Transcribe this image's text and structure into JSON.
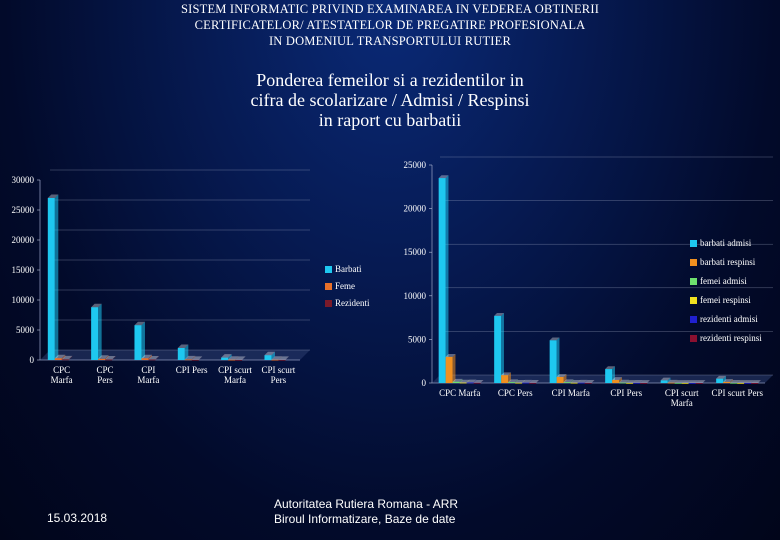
{
  "header": {
    "title_lines": [
      "SISTEM INFORMATIC PRIVIND EXAMINAREA IN VEDEREA OBTINERII",
      "CERTIFICATELOR/ ATESTATELOR DE PREGATIRE PROFESIONALA",
      "IN DOMENIUL TRANSPORTULUI RUTIER"
    ],
    "subtitle_lines": [
      "Ponderea femeilor si a rezidentilor in",
      "cifra de scolarizare / Admisi / Respinsi",
      "in raport cu barbatii"
    ]
  },
  "footer": {
    "date": "15.03.2018",
    "org_lines": [
      "Autoritatea Rutiera Romana - ARR",
      "Biroul  Informatizare, Baze de date"
    ]
  },
  "chart_data": [
    {
      "type": "bar",
      "categories": [
        [
          "CPC",
          "Marfa"
        ],
        [
          "CPC",
          "Pers"
        ],
        [
          "CPI",
          "Marfa"
        ],
        [
          "CPI Pers"
        ],
        [
          "CPI scurt",
          "Marfa"
        ],
        [
          "CPI scurt",
          "Pers"
        ]
      ],
      "series": [
        {
          "name": "Barbati",
          "values": [
            27000,
            8800,
            5800,
            2000,
            400,
            800
          ],
          "color": "#1ec8f0"
        },
        {
          "name": "Feme",
          "values": [
            300,
            200,
            300,
            100,
            50,
            50
          ],
          "color": "#e8702a"
        },
        {
          "name": "Rezidenti",
          "values": [
            100,
            80,
            80,
            30,
            20,
            20
          ],
          "color": "#7a1a2a"
        }
      ],
      "yticks": [
        0,
        5000,
        10000,
        15000,
        20000,
        25000,
        30000
      ],
      "ylim": [
        0,
        30000
      ],
      "legend": "right"
    },
    {
      "type": "bar",
      "categories": [
        [
          "CPC Marfa"
        ],
        [
          "CPC Pers"
        ],
        [
          "CPI Marfa"
        ],
        [
          "CPI Pers"
        ],
        [
          "CPI scurt",
          "Marfa"
        ],
        [
          "CPI scurt Pers"
        ]
      ],
      "series": [
        {
          "name": "barbati admisi",
          "values": [
            23500,
            7700,
            4900,
            1600,
            300,
            500
          ],
          "color": "#1ec8f0"
        },
        {
          "name": "barbati respinsi",
          "values": [
            3000,
            900,
            700,
            350,
            40,
            120
          ],
          "color": "#f09020"
        },
        {
          "name": "femei admisi",
          "values": [
            150,
            100,
            100,
            50,
            10,
            20
          ],
          "color": "#6ee06e"
        },
        {
          "name": "femei respinsi",
          "values": [
            50,
            30,
            30,
            10,
            5,
            5
          ],
          "color": "#f0e020"
        },
        {
          "name": "rezidenti admisi",
          "values": [
            60,
            40,
            40,
            20,
            5,
            10
          ],
          "color": "#2020d0"
        },
        {
          "name": "rezidenti respinsi",
          "values": [
            30,
            20,
            20,
            10,
            3,
            5
          ],
          "color": "#8a1030"
        }
      ],
      "yticks": [
        0,
        5000,
        10000,
        15000,
        20000,
        25000
      ],
      "ylim": [
        0,
        25000
      ],
      "legend": "right"
    }
  ]
}
